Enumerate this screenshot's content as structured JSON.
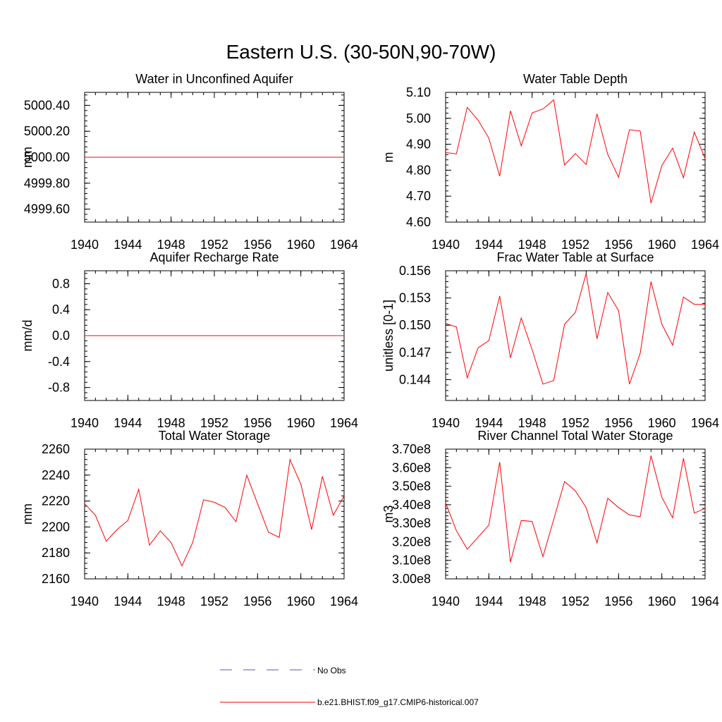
{
  "figure_title": "Eastern U.S. (30-50N,90-70W)",
  "legend": [
    {
      "label": "No Obs",
      "color": "#5a5ab4",
      "style": "dashed"
    },
    {
      "label": "b.e21.BHIST.f09_g17.CMIP6-historical.007",
      "color": "#ff0000",
      "style": "solid"
    }
  ],
  "chart_data": [
    {
      "type": "line",
      "title": "Water in Unconfined Aquifer",
      "ylabel": "mm",
      "xlim": [
        1940,
        1964
      ],
      "ylim": [
        4999.5,
        5000.5
      ],
      "xticks": [
        1940,
        1944,
        1948,
        1952,
        1956,
        1960,
        1964
      ],
      "xtick_labels": [
        "1940",
        "1944",
        "1948",
        "1952",
        "1956",
        "1960",
        "1964"
      ],
      "yticks": [
        4999.6,
        4999.8,
        5000.0,
        5000.2,
        5000.4
      ],
      "ytick_labels": [
        "4999.60",
        "4999.80",
        "5000.00",
        "5000.20",
        "5000.40"
      ],
      "x": [
        1940,
        1941,
        1942,
        1943,
        1944,
        1945,
        1946,
        1947,
        1948,
        1949,
        1950,
        1951,
        1952,
        1953,
        1954,
        1955,
        1956,
        1957,
        1958,
        1959,
        1960,
        1961,
        1962,
        1963,
        1964
      ],
      "values": [
        5000.0,
        5000.0,
        5000.0,
        5000.0,
        5000.0,
        5000.0,
        5000.0,
        5000.0,
        5000.0,
        5000.0,
        5000.0,
        5000.0,
        5000.0,
        5000.0,
        5000.0,
        5000.0,
        5000.0,
        5000.0,
        5000.0,
        5000.0,
        5000.0,
        5000.0,
        5000.0,
        5000.0,
        5000.0
      ]
    },
    {
      "type": "line",
      "title": "Water Table Depth",
      "ylabel": "m",
      "xlim": [
        1940,
        1964
      ],
      "ylim": [
        4.6,
        5.1
      ],
      "xticks": [
        1940,
        1944,
        1948,
        1952,
        1956,
        1960,
        1964
      ],
      "xtick_labels": [
        "1940",
        "1944",
        "1948",
        "1952",
        "1956",
        "1960",
        "1964"
      ],
      "yticks": [
        4.6,
        4.7,
        4.8,
        4.9,
        5.0,
        5.1
      ],
      "ytick_labels": [
        "4.60",
        "4.70",
        "4.80",
        "4.90",
        "5.00",
        "5.10"
      ],
      "x": [
        1940,
        1941,
        1942,
        1943,
        1944,
        1945,
        1946,
        1947,
        1948,
        1949,
        1950,
        1951,
        1952,
        1953,
        1954,
        1955,
        1956,
        1957,
        1958,
        1959,
        1960,
        1961,
        1962,
        1963,
        1964
      ],
      "values": [
        4.868,
        4.863,
        5.042,
        4.993,
        4.924,
        4.777,
        5.029,
        4.894,
        5.021,
        5.036,
        5.071,
        4.82,
        4.864,
        4.822,
        5.017,
        4.861,
        4.773,
        4.956,
        4.951,
        4.673,
        4.818,
        4.885,
        4.771,
        4.947,
        4.845
      ]
    },
    {
      "type": "line",
      "title": "Aquifer Recharge Rate",
      "ylabel": "mm/d",
      "xlim": [
        1940,
        1964
      ],
      "ylim": [
        -1.0,
        1.0
      ],
      "xticks": [
        1940,
        1944,
        1948,
        1952,
        1956,
        1960,
        1964
      ],
      "xtick_labels": [
        "1940",
        "1944",
        "1948",
        "1952",
        "1956",
        "1960",
        "1964"
      ],
      "yticks": [
        -0.8,
        -0.4,
        0.0,
        0.4,
        0.8
      ],
      "ytick_labels": [
        "-0.8",
        "-0.4",
        "0.0",
        "0.4",
        "0.8"
      ],
      "x": [
        1940,
        1941,
        1942,
        1943,
        1944,
        1945,
        1946,
        1947,
        1948,
        1949,
        1950,
        1951,
        1952,
        1953,
        1954,
        1955,
        1956,
        1957,
        1958,
        1959,
        1960,
        1961,
        1962,
        1963,
        1964
      ],
      "values": [
        0.0,
        0.0,
        0.0,
        0.0,
        0.0,
        0.0,
        0.0,
        0.0,
        0.0,
        0.0,
        0.0,
        0.0,
        0.0,
        0.0,
        0.0,
        0.0,
        0.0,
        0.0,
        0.0,
        0.0,
        0.0,
        0.0,
        0.0,
        0.0,
        0.0
      ]
    },
    {
      "type": "line",
      "title": "Frac Water Table at Surface",
      "ylabel": "unitless [0-1]",
      "xlim": [
        1940,
        1964
      ],
      "ylim": [
        0.1417,
        0.156
      ],
      "xticks": [
        1940,
        1944,
        1948,
        1952,
        1956,
        1960,
        1964
      ],
      "xtick_labels": [
        "1940",
        "1944",
        "1948",
        "1952",
        "1956",
        "1960",
        "1964"
      ],
      "yticks": [
        0.144,
        0.147,
        0.15,
        0.153,
        0.156
      ],
      "ytick_labels": [
        "0.144",
        "0.147",
        "0.150",
        "0.153",
        "0.156"
      ],
      "x": [
        1940,
        1941,
        1942,
        1943,
        1944,
        1945,
        1946,
        1947,
        1948,
        1949,
        1950,
        1951,
        1952,
        1953,
        1954,
        1955,
        1956,
        1957,
        1958,
        1959,
        1960,
        1961,
        1962,
        1963,
        1964
      ],
      "values": [
        0.1502,
        0.1498,
        0.1442,
        0.1475,
        0.1483,
        0.1532,
        0.1464,
        0.1508,
        0.1473,
        0.1435,
        0.1439,
        0.1501,
        0.1514,
        0.1557,
        0.1485,
        0.1536,
        0.1516,
        0.1435,
        0.1469,
        0.1548,
        0.1501,
        0.1478,
        0.1531,
        0.1523,
        0.1523
      ]
    },
    {
      "type": "line",
      "title": "Total Water Storage",
      "ylabel": "mm",
      "xlim": [
        1940,
        1964
      ],
      "ylim": [
        2160,
        2260
      ],
      "xticks": [
        1940,
        1944,
        1948,
        1952,
        1956,
        1960,
        1964
      ],
      "xtick_labels": [
        "1940",
        "1944",
        "1948",
        "1952",
        "1956",
        "1960",
        "1964"
      ],
      "yticks": [
        2160,
        2180,
        2200,
        2220,
        2240,
        2260
      ],
      "ytick_labels": [
        "2160",
        "2180",
        "2200",
        "2220",
        "2240",
        "2260"
      ],
      "x": [
        1940,
        1941,
        1942,
        1943,
        1944,
        1945,
        1946,
        1947,
        1948,
        1949,
        1950,
        1951,
        1952,
        1953,
        1954,
        1955,
        1956,
        1957,
        1958,
        1959,
        1960,
        1961,
        1962,
        1963,
        1964
      ],
      "values": [
        2218,
        2209,
        2189,
        2198,
        2205,
        2229,
        2186,
        2197,
        2188,
        2170,
        2188,
        2221,
        2219,
        2215,
        2204,
        2240,
        2218,
        2196,
        2192,
        2252,
        2233,
        2198,
        2239,
        2209,
        2224
      ]
    },
    {
      "type": "line",
      "title": "River Channel Total Water Storage",
      "ylabel": "m3",
      "xlim": [
        1940,
        1964
      ],
      "ylim": [
        300000000,
        370000000
      ],
      "xticks": [
        1940,
        1944,
        1948,
        1952,
        1956,
        1960,
        1964
      ],
      "xtick_labels": [
        "1940",
        "1944",
        "1948",
        "1952",
        "1956",
        "1960",
        "1964"
      ],
      "yticks": [
        300000000,
        310000000,
        320000000,
        330000000,
        340000000,
        350000000,
        360000000,
        370000000
      ],
      "ytick_labels": [
        "3.00e8",
        "3.10e8",
        "3.20e8",
        "3.30e8",
        "3.40e8",
        "3.50e8",
        "3.60e8",
        "3.70e8"
      ],
      "x": [
        1940,
        1941,
        1942,
        1943,
        1944,
        1945,
        1946,
        1947,
        1948,
        1949,
        1950,
        1951,
        1952,
        1953,
        1954,
        1955,
        1956,
        1957,
        1958,
        1959,
        1960,
        1961,
        1962,
        1963,
        1964
      ],
      "values": [
        341000000,
        326000000,
        316000000,
        322500000,
        329000000,
        363000000,
        309000000,
        331500000,
        331000000,
        312000000,
        332000000,
        352500000,
        347500000,
        338500000,
        319500000,
        343500000,
        338500000,
        334500000,
        333500000,
        366500000,
        344000000,
        333000000,
        365000000,
        335500000,
        338000000
      ]
    }
  ]
}
